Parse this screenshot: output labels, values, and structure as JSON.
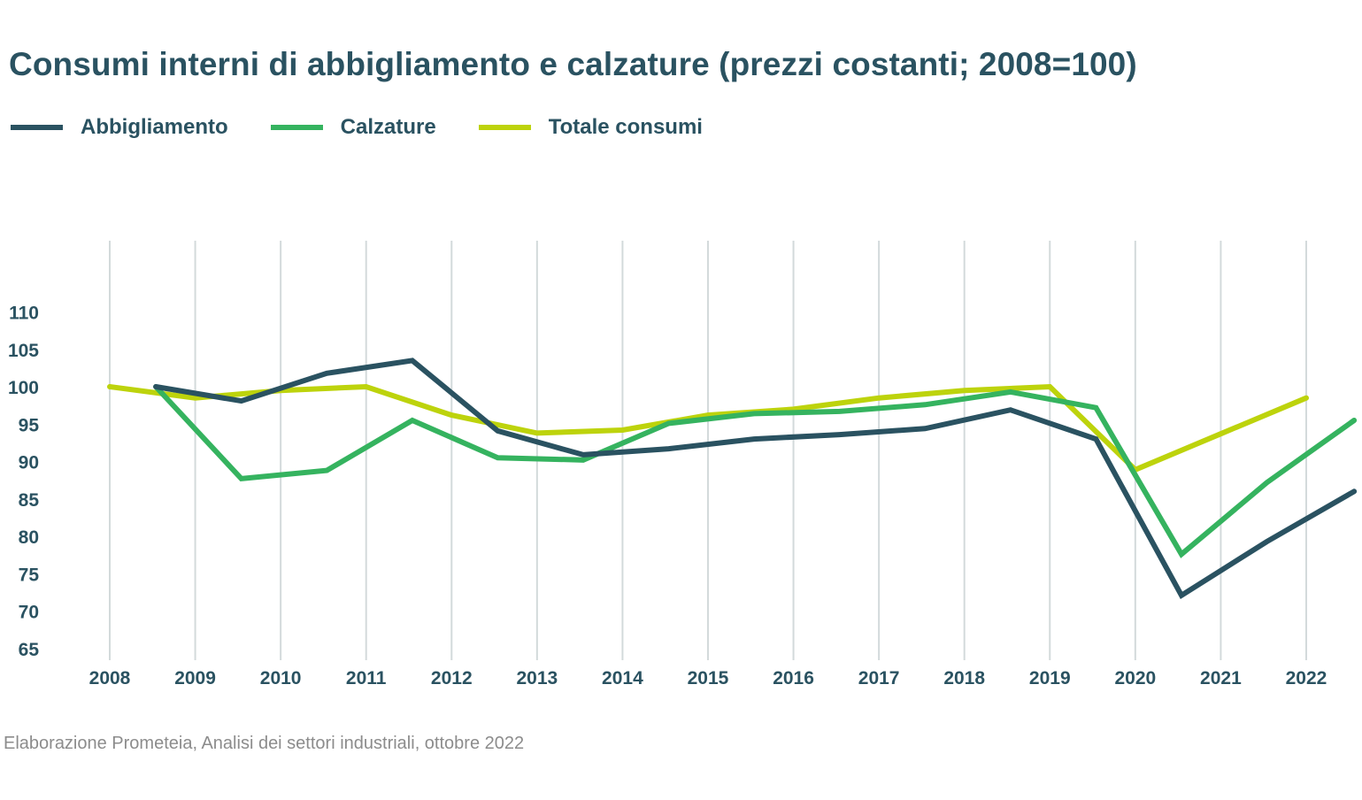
{
  "chart_data": {
    "type": "line",
    "title": "Consumi interni di abbigliamento e calzature (prezzi costanti; 2008=100)",
    "xlabel": "",
    "ylabel": "",
    "categories": [
      "2008",
      "2009",
      "2010",
      "2011",
      "2012",
      "2013",
      "2014",
      "2015",
      "2016",
      "2017",
      "2018",
      "2019",
      "2020",
      "2021",
      "2022"
    ],
    "y_ticks": [
      65,
      70,
      75,
      80,
      85,
      90,
      95,
      100,
      105,
      110
    ],
    "ylim": [
      63,
      119
    ],
    "xlim": [
      2008,
      2022.6
    ],
    "grid": "vertical",
    "legend_position": "top-left",
    "series": [
      {
        "name": "Abbigliamento",
        "color": "#2a5261",
        "x": [
          2008.54,
          2009.54,
          2010.54,
          2011.54,
          2012.54,
          2013.54,
          2014.54,
          2015.54,
          2016.54,
          2017.54,
          2018.54,
          2019.54,
          2020.54,
          2021.54,
          2022.56
        ],
        "values": [
          100.0,
          98.1,
          101.8,
          103.5,
          94.1,
          90.9,
          91.7,
          93.0,
          93.6,
          94.4,
          96.9,
          93.0,
          72.1,
          79.3,
          86.0
        ]
      },
      {
        "name": "Calzature",
        "color": "#35b35f",
        "x": [
          2008.54,
          2009.54,
          2010.54,
          2011.54,
          2012.54,
          2013.54,
          2014.54,
          2015.54,
          2016.54,
          2017.54,
          2018.54,
          2019.54,
          2020.54,
          2021.54,
          2022.56
        ],
        "values": [
          100.0,
          87.7,
          88.8,
          95.5,
          90.5,
          90.2,
          95.1,
          96.4,
          96.7,
          97.6,
          99.3,
          97.2,
          77.6,
          87.2,
          95.5
        ]
      },
      {
        "name": "Totale consumi",
        "color": "#bdd30c",
        "x": [
          2008,
          2009,
          2010,
          2011,
          2012,
          2013,
          2014,
          2015,
          2016,
          2017,
          2018,
          2019,
          2020,
          2021,
          2022
        ],
        "values": [
          100.0,
          98.5,
          99.5,
          100.0,
          96.2,
          93.8,
          94.2,
          96.2,
          97.0,
          98.5,
          99.5,
          100.0,
          88.9,
          93.7,
          98.5
        ]
      }
    ],
    "grid_color": "#d3dadb",
    "text_color": "#2a5261"
  },
  "legend": [
    {
      "label": "Abbigliamento",
      "color": "#2a5261"
    },
    {
      "label": "Calzature",
      "color": "#35b35f"
    },
    {
      "label": "Totale consumi",
      "color": "#bdd30c"
    }
  ],
  "footer": "Elaborazione Prometeia, Analisi dei settori industriali, ottobre 2022"
}
